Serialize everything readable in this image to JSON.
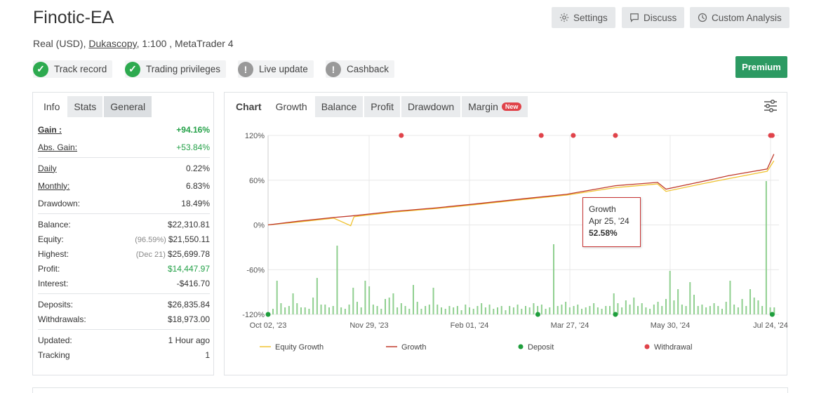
{
  "header": {
    "title": "Finotic-EA",
    "subtitle_prefix": "Real (USD), ",
    "broker": "Dukascopy",
    "subtitle_suffix": ", 1:100 , MetaTrader 4",
    "buttons": {
      "settings": "Settings",
      "discuss": "Discuss",
      "custom": "Custom Analysis"
    },
    "premium": "Premium"
  },
  "badges": [
    {
      "label": "Track record",
      "status": "ok"
    },
    {
      "label": "Trading privileges",
      "status": "ok"
    },
    {
      "label": "Live update",
      "status": "warn"
    },
    {
      "label": "Cashback",
      "status": "warn"
    }
  ],
  "left_tabs": {
    "info": "Info",
    "stats": "Stats",
    "general": "General"
  },
  "stats": {
    "gain_label": "Gain :",
    "gain": "+94.16%",
    "abs_gain_label": "Abs. Gain:",
    "abs_gain": "+53.84%",
    "daily_label": "Daily",
    "daily": "0.22%",
    "monthly_label": "Monthly:",
    "monthly": "6.83%",
    "drawdown_label": "Drawdown:",
    "drawdown": "18.49%",
    "balance_label": "Balance:",
    "balance": "$22,310.81",
    "equity_label": "Equity:",
    "equity_pct": "(96.59%)",
    "equity": "$21,550.11",
    "highest_label": "Highest:",
    "highest_date": "(Dec 21)",
    "highest": "$25,699.78",
    "profit_label": "Profit:",
    "profit": "$14,447.97",
    "interest_label": "Interest:",
    "interest": "-$416.70",
    "deposits_label": "Deposits:",
    "deposits": "$26,835.84",
    "withdrawals_label": "Withdrawals:",
    "withdrawals": "$18,973.00",
    "updated_label": "Updated:",
    "updated": "1 Hour ago",
    "tracking_label": "Tracking",
    "tracking": "1"
  },
  "chart_tabs": {
    "chart": "Chart",
    "growth": "Growth",
    "balance": "Balance",
    "profit": "Profit",
    "drawdown": "Drawdown",
    "margin": "Margin",
    "new": "New"
  },
  "tooltip": {
    "title": "Growth",
    "date": "Apr 25, '24",
    "value": "52.58%"
  },
  "colors": {
    "growth": "#c0392b",
    "equity": "#f0c330",
    "deposit": "#1e9e3c",
    "withdrawal": "#e0434a",
    "bars": "#8fcf8f",
    "premium": "#2c9a62"
  },
  "chart_data": {
    "type": "line",
    "x_ticks": [
      "Oct 02, '23",
      "Nov 29, '23",
      "Feb 01, '24",
      "Mar 27, '24",
      "May 30, '24",
      "Jul 24, '24"
    ],
    "y_ticks": [
      "120%",
      "60%",
      "0%",
      "-60%",
      "-120%"
    ],
    "ylim": [
      -120,
      120
    ],
    "x_range": [
      "2023-10-02",
      "2024-07-31"
    ],
    "series": [
      {
        "name": "Growth",
        "points": [
          [
            "2023-10-02",
            0
          ],
          [
            "2023-10-20",
            5
          ],
          [
            "2023-11-10",
            10
          ],
          [
            "2023-11-20",
            12
          ],
          [
            "2023-12-15",
            18
          ],
          [
            "2024-01-10",
            23
          ],
          [
            "2024-02-01",
            28
          ],
          [
            "2024-03-01",
            35
          ],
          [
            "2024-03-27",
            41
          ],
          [
            "2024-04-25",
            52.58
          ],
          [
            "2024-05-20",
            57
          ],
          [
            "2024-05-25",
            48
          ],
          [
            "2024-06-15",
            58
          ],
          [
            "2024-07-01",
            66
          ],
          [
            "2024-07-24",
            75
          ],
          [
            "2024-07-28",
            95
          ]
        ]
      },
      {
        "name": "Equity Growth",
        "points": [
          [
            "2023-10-02",
            0
          ],
          [
            "2023-10-20",
            4
          ],
          [
            "2023-11-10",
            9
          ],
          [
            "2023-11-20",
            -1
          ],
          [
            "2023-11-22",
            11
          ],
          [
            "2023-12-15",
            17
          ],
          [
            "2024-01-10",
            22
          ],
          [
            "2024-02-01",
            27
          ],
          [
            "2024-03-01",
            34
          ],
          [
            "2024-03-27",
            40
          ],
          [
            "2024-04-25",
            50
          ],
          [
            "2024-05-20",
            55
          ],
          [
            "2024-05-25",
            45
          ],
          [
            "2024-06-15",
            55
          ],
          [
            "2024-07-01",
            62
          ],
          [
            "2024-07-24",
            72
          ],
          [
            "2024-07-28",
            86
          ]
        ]
      }
    ],
    "deposits": [
      "2023-10-02",
      "2024-03-10",
      "2024-04-25",
      "2024-07-27"
    ],
    "withdrawals": [
      "2023-12-20",
      "2024-03-12",
      "2024-03-31",
      "2024-04-25",
      "2024-07-26",
      "2024-07-27"
    ],
    "legend": [
      "Equity Growth",
      "Growth",
      "Deposit",
      "Withdrawal"
    ],
    "legend_position": "bottom"
  }
}
